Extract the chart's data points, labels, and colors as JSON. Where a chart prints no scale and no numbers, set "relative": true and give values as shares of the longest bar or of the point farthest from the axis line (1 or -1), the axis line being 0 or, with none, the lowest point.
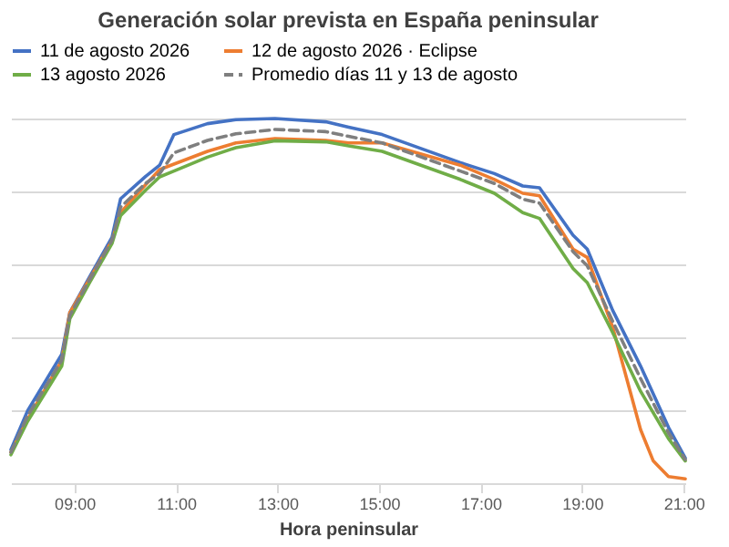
{
  "chart_data": {
    "type": "line",
    "title": "Generación solar prevista en España peninsular",
    "xlabel": "Hora peninsular",
    "relative": true,
    "grid": "y",
    "legend": "top",
    "marker": "none",
    "xlim": [
      7.75,
      21.03
    ],
    "xticks": [
      {
        "value": 9,
        "label": "09:00"
      },
      {
        "value": 11,
        "label": "11:00"
      },
      {
        "value": 13,
        "label": "13:00"
      },
      {
        "value": 15,
        "label": "15:00"
      },
      {
        "value": 17,
        "label": "17:00"
      },
      {
        "value": 19,
        "label": "19:00"
      },
      {
        "value": 21,
        "label": "21:00"
      }
    ],
    "x": [
      7.75,
      8.08,
      8.75,
      8.91,
      9.3,
      9.74,
      9.91,
      10.4,
      10.68,
      10.96,
      11.62,
      12.18,
      12.95,
      13.95,
      14.4,
      15.06,
      16.6,
      17.27,
      17.83,
      18.16,
      18.82,
      19.1,
      19.6,
      20.15,
      20.7,
      21.03
    ],
    "series": [
      {
        "name": "11 de agosto 2026",
        "color": "#4472c4",
        "line_style": "solid",
        "values": [
          0.092,
          0.199,
          0.353,
          0.468,
          0.566,
          0.674,
          0.78,
          0.841,
          0.872,
          0.956,
          0.986,
          0.997,
          1.0,
          0.991,
          0.976,
          0.956,
          0.879,
          0.849,
          0.815,
          0.81,
          0.68,
          0.642,
          0.474,
          0.321,
          0.153,
          0.069
        ]
      },
      {
        "name": "12 de agosto 2026 · Eclipse",
        "color": "#ed7d31",
        "line_style": "solid",
        "x": [
          7.75,
          8.08,
          8.75,
          8.91,
          9.3,
          9.74,
          9.91,
          10.4,
          10.68,
          10.96,
          11.62,
          12.18,
          12.95,
          13.95,
          14.4,
          15.06,
          16.6,
          17.27,
          17.83,
          18.16,
          18.82,
          19.1,
          19.6,
          20.15,
          20.4,
          20.7,
          21.03
        ],
        "values": [
          0.085,
          0.176,
          0.336,
          0.468,
          0.56,
          0.665,
          0.742,
          0.818,
          0.86,
          0.875,
          0.91,
          0.933,
          0.945,
          0.94,
          0.933,
          0.933,
          0.872,
          0.833,
          0.795,
          0.788,
          0.642,
          0.619,
          0.428,
          0.147,
          0.061,
          0.018,
          0.012
        ]
      },
      {
        "name": "13 agosto 2026",
        "color": "#70ad47",
        "line_style": "solid",
        "values": [
          0.078,
          0.17,
          0.321,
          0.451,
          0.55,
          0.657,
          0.734,
          0.803,
          0.84,
          0.856,
          0.894,
          0.92,
          0.939,
          0.936,
          0.925,
          0.91,
          0.833,
          0.795,
          0.742,
          0.726,
          0.589,
          0.55,
          0.413,
          0.252,
          0.122,
          0.061
        ]
      },
      {
        "name": "Promedio días 11 y 13 de agosto",
        "color": "#7f7f7f",
        "line_style": "dashed",
        "values": [
          0.085,
          0.185,
          0.337,
          0.46,
          0.558,
          0.666,
          0.757,
          0.822,
          0.849,
          0.906,
          0.94,
          0.958,
          0.97,
          0.964,
          0.951,
          0.933,
          0.856,
          0.822,
          0.779,
          0.768,
          0.635,
          0.596,
          0.444,
          0.287,
          0.138,
          0.065
        ]
      }
    ]
  }
}
